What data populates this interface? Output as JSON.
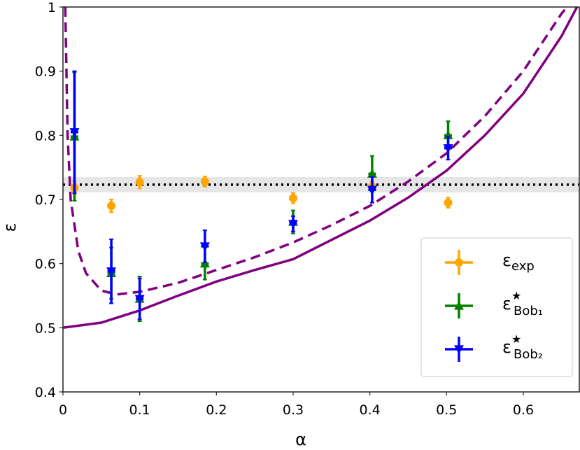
{
  "chart_data": {
    "type": "scatter",
    "x_label": "α",
    "y_label": "ε",
    "xlim": [
      0,
      0.673
    ],
    "ylim": [
      0.4,
      1
    ],
    "xticks": [
      0,
      0.1,
      0.2,
      0.3,
      0.4,
      0.5,
      0.6
    ],
    "yticks": [
      0.4,
      0.5,
      0.6,
      0.7,
      0.8,
      0.9,
      1
    ],
    "reference_line": {
      "value": 0.723,
      "band": [
        0.711,
        0.735
      ],
      "color": "#000000",
      "band_color": "#e6e6e6"
    },
    "curves": [
      {
        "style": "solid",
        "color": "#800080",
        "x": [
          0,
          0.05,
          0.1,
          0.15,
          0.2,
          0.25,
          0.3,
          0.35,
          0.4,
          0.45,
          0.5,
          0.55,
          0.6,
          0.65,
          0.67
        ],
        "values": [
          0.5,
          0.508,
          0.527,
          0.55,
          0.572,
          0.59,
          0.607,
          0.637,
          0.667,
          0.703,
          0.745,
          0.8,
          0.865,
          0.955,
          1.0
        ]
      },
      {
        "style": "dashed",
        "color": "#800080",
        "x": [
          0.003,
          0.006,
          0.01,
          0.02,
          0.03,
          0.05,
          0.07,
          0.1,
          0.15,
          0.2,
          0.25,
          0.3,
          0.35,
          0.4,
          0.45,
          0.5,
          0.55,
          0.6,
          0.65,
          0.657
        ],
        "values": [
          1.0,
          0.8,
          0.7,
          0.62,
          0.585,
          0.558,
          0.552,
          0.556,
          0.57,
          0.59,
          0.61,
          0.633,
          0.66,
          0.69,
          0.728,
          0.772,
          0.83,
          0.9,
          0.99,
          1.0
        ]
      }
    ],
    "series": [
      {
        "name": "ε",
        "subscript": "exp",
        "color": "#ffa500",
        "marker": "circle",
        "x": [
          0.015,
          0.063,
          0.1,
          0.185,
          0.3,
          0.403,
          0.502
        ],
        "values": [
          0.718,
          0.69,
          0.727,
          0.728,
          0.702,
          0.72,
          0.695
        ],
        "errors": [
          0.01,
          0.01,
          0.01,
          0.008,
          0.008,
          0.008,
          0.008
        ],
        "xerrors": [
          0.005,
          0.005,
          0.005,
          0.005,
          0.005,
          0.005,
          0.005
        ]
      },
      {
        "name": "ε",
        "superscript": "★",
        "subscript": "Bob₁",
        "color": "#008000",
        "marker": "triangle-up",
        "x": [
          0.015,
          0.063,
          0.1,
          0.185,
          0.3,
          0.403,
          0.502
        ],
        "values": [
          0.798,
          0.585,
          0.545,
          0.6,
          0.665,
          0.74,
          0.8
        ],
        "errors": [
          0.1,
          0.04,
          0.035,
          0.025,
          0.018,
          0.028,
          0.022
        ],
        "xerrors": [
          0.005,
          0.005,
          0.005,
          0.005,
          0.005,
          0.005,
          0.005
        ]
      },
      {
        "name": "ε",
        "superscript": "★",
        "subscript": "Bob₂",
        "color": "#0000ff",
        "marker": "triangle-down",
        "x": [
          0.015,
          0.063,
          0.1,
          0.185,
          0.3,
          0.403,
          0.502
        ],
        "values": [
          0.805,
          0.588,
          0.545,
          0.627,
          0.662,
          0.715,
          0.78
        ],
        "errors": [
          0.095,
          0.05,
          0.032,
          0.025,
          0.012,
          0.02,
          0.018
        ],
        "xerrors": [
          0.005,
          0.005,
          0.005,
          0.005,
          0.005,
          0.005,
          0.005
        ]
      }
    ]
  }
}
